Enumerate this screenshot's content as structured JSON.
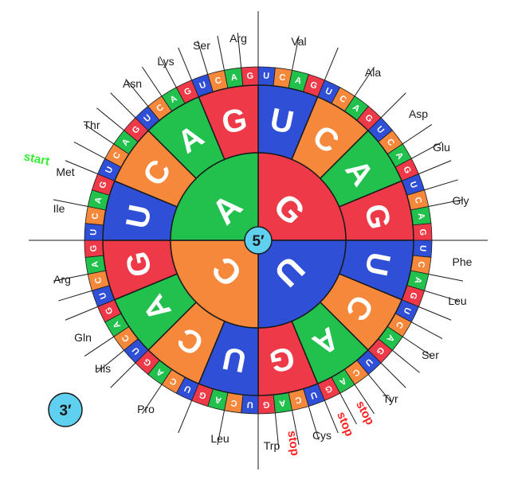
{
  "colors": {
    "U": "#2f4fd6",
    "C": "#f5883a",
    "A": "#22c04c",
    "G": "#ee3a48",
    "outline": "#1a1a1a",
    "center": "#5fd0ef",
    "start": "#33ee33",
    "stop": "#ff2222",
    "background": "#ffffff"
  },
  "center_label": "5′",
  "end_label": "3′",
  "inner_ring": [
    "G",
    "U",
    "C",
    "A"
  ],
  "middle_ring": [
    "U",
    "C",
    "A",
    "G",
    "U",
    "C",
    "A",
    "G",
    "U",
    "C",
    "A",
    "G",
    "U",
    "C",
    "A",
    "G"
  ],
  "outer_ring": [
    "U",
    "C",
    "A",
    "G",
    "U",
    "C",
    "A",
    "G",
    "U",
    "C",
    "A",
    "G",
    "U",
    "C",
    "A",
    "G",
    "U",
    "C",
    "A",
    "G",
    "U",
    "C",
    "A",
    "G",
    "U",
    "C",
    "A",
    "G",
    "U",
    "C",
    "A",
    "G",
    "U",
    "C",
    "A",
    "G",
    "U",
    "C",
    "A",
    "G",
    "U",
    "C",
    "A",
    "G",
    "U",
    "C",
    "A",
    "G",
    "U",
    "C",
    "A",
    "G",
    "U",
    "C",
    "A",
    "G",
    "U",
    "C",
    "A",
    "G",
    "U",
    "C",
    "A",
    "G"
  ],
  "amino_acids": [
    {
      "label": "Val"
    },
    {
      "label": "Ala"
    },
    {
      "label": "Asp"
    },
    {
      "label": "Glu"
    },
    {
      "label": "Gly"
    },
    {
      "label": "Phe"
    },
    {
      "label": "Leu"
    },
    {
      "label": "Ser"
    },
    {
      "label": "Tyr"
    },
    {
      "label": "Cys"
    },
    {
      "label": "Trp"
    },
    {
      "label": "Leu"
    },
    {
      "label": "Pro"
    },
    {
      "label": "His"
    },
    {
      "label": "Gln"
    },
    {
      "label": "Arg"
    },
    {
      "label": "Ile"
    },
    {
      "label": "Met"
    },
    {
      "label": "Thr"
    },
    {
      "label": "Asn"
    },
    {
      "label": "Lys"
    },
    {
      "label": "Ser"
    },
    {
      "label": "Arg"
    }
  ],
  "annotations": [
    {
      "label": "start",
      "kind": "start"
    },
    {
      "label": "stop",
      "kind": "stop"
    },
    {
      "label": "stop",
      "kind": "stop"
    },
    {
      "label": "stop",
      "kind": "stop"
    }
  ]
}
